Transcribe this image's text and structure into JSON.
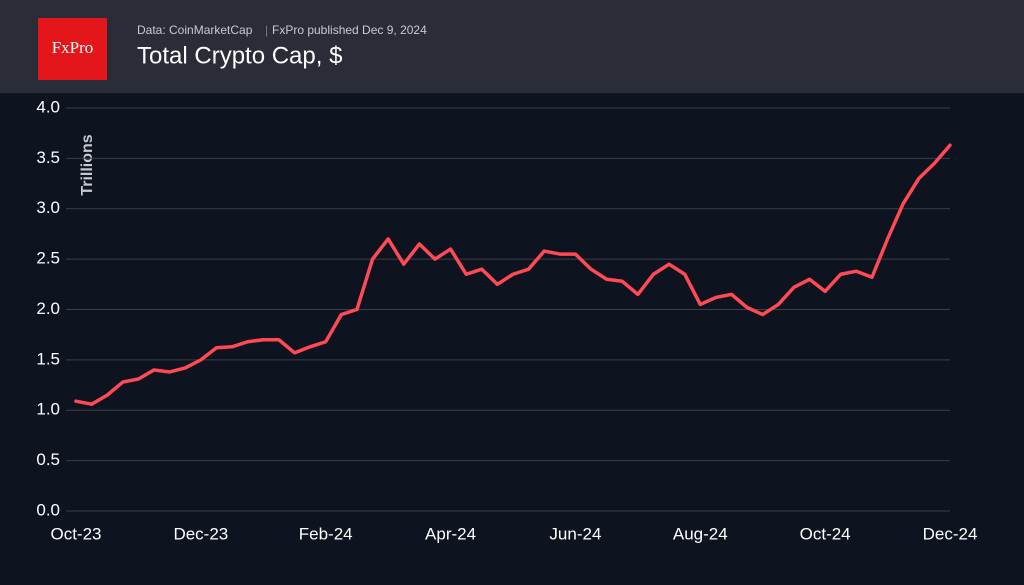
{
  "chart_data": {
    "type": "line",
    "logo": "FxPro",
    "source": "Data: CoinMarketCap",
    "published": "FxPro published Dec 9, 2024",
    "title": "Total Crypto Cap, $",
    "ylabel": "Trillions",
    "categories": [
      "Oct-23",
      null,
      null,
      null,
      null,
      null,
      null,
      null,
      "Dec-23",
      null,
      null,
      null,
      null,
      null,
      null,
      null,
      "Feb-24",
      null,
      null,
      null,
      null,
      null,
      null,
      null,
      "Apr-24",
      null,
      null,
      null,
      null,
      null,
      null,
      null,
      "Jun-24",
      null,
      null,
      null,
      null,
      null,
      null,
      null,
      "Aug-24",
      null,
      null,
      null,
      null,
      null,
      null,
      null,
      "Oct-24",
      null,
      null,
      null,
      null,
      null,
      null,
      null,
      "Dec-24"
    ],
    "series": [
      {
        "name": "Total Crypto Cap",
        "color": "#ff4a55",
        "values": [
          1.09,
          1.06,
          1.15,
          1.28,
          1.31,
          1.4,
          1.38,
          1.42,
          1.5,
          1.62,
          1.63,
          1.68,
          1.7,
          1.7,
          1.57,
          1.63,
          1.68,
          1.95,
          2.0,
          2.5,
          2.7,
          2.45,
          2.65,
          2.5,
          2.6,
          2.35,
          2.4,
          2.25,
          2.35,
          2.4,
          2.58,
          2.55,
          2.55,
          2.4,
          2.3,
          2.28,
          2.15,
          2.35,
          2.45,
          2.35,
          2.05,
          2.12,
          2.15,
          2.02,
          1.95,
          2.05,
          2.22,
          2.3,
          2.18,
          2.35,
          2.38,
          2.32,
          2.7,
          3.05,
          3.3,
          3.45,
          3.63
        ]
      }
    ],
    "ylim": [
      0,
      4
    ],
    "yticks": [
      {
        "value": 0,
        "label": "0.0"
      },
      0.5,
      {
        "value": 1,
        "label": "1.0"
      },
      1.5,
      {
        "value": 2,
        "label": "2.0"
      },
      2.5,
      {
        "value": 3,
        "label": "3.0"
      },
      3.5,
      {
        "value": 4,
        "label": "4.0"
      }
    ],
    "grid": true
  }
}
